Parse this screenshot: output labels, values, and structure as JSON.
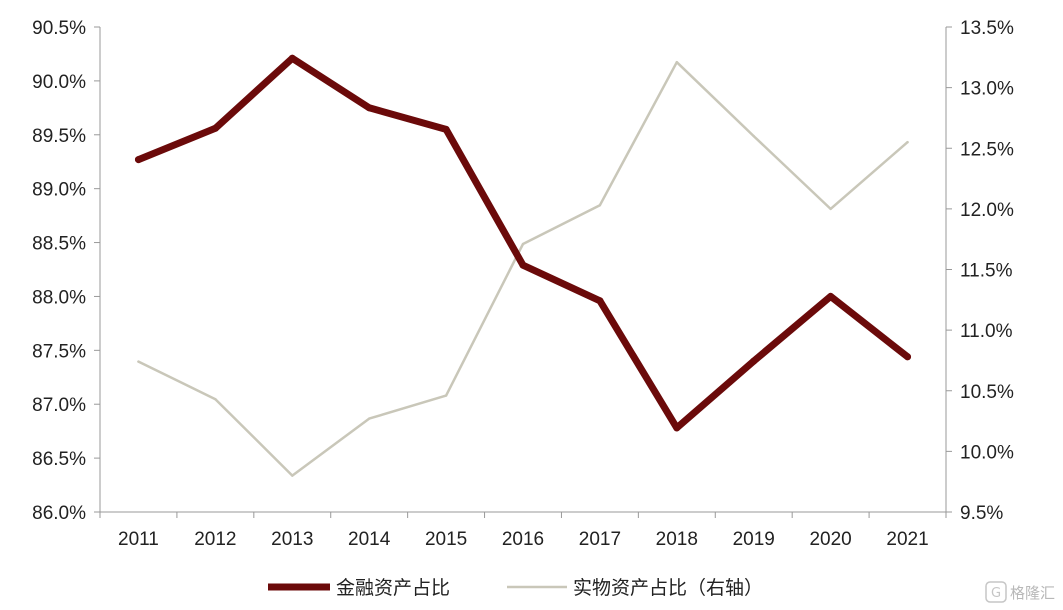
{
  "chart_data": {
    "type": "line",
    "categories": [
      "2011",
      "2012",
      "2013",
      "2014",
      "2015",
      "2016",
      "2017",
      "2018",
      "2019",
      "2020",
      "2021"
    ],
    "series": [
      {
        "name": "金融资产占比",
        "axis": "left",
        "color": "#6b0a0a",
        "values": [
          89.27,
          89.56,
          90.21,
          89.75,
          89.55,
          88.29,
          87.96,
          86.78,
          87.4,
          88.0,
          87.44
        ]
      },
      {
        "name": "实物资产占比（右轴）",
        "axis": "right",
        "color": "#c9c7b9",
        "values": [
          10.74,
          10.43,
          9.8,
          10.27,
          10.46,
          11.71,
          12.03,
          13.21,
          12.6,
          12.0,
          12.55
        ]
      }
    ],
    "y_left": {
      "ylim": [
        86.0,
        90.5
      ],
      "ticks": [
        86.0,
        86.5,
        87.0,
        87.5,
        88.0,
        88.5,
        89.0,
        89.5,
        90.0,
        90.5
      ],
      "tick_labels": [
        "86.0%",
        "86.5%",
        "87.0%",
        "87.5%",
        "88.0%",
        "88.5%",
        "89.0%",
        "89.5%",
        "90.0%",
        "90.5%"
      ]
    },
    "y_right": {
      "ylim": [
        9.5,
        13.5
      ],
      "ticks": [
        9.5,
        10.0,
        10.5,
        11.0,
        11.5,
        12.0,
        12.5,
        13.0,
        13.5
      ],
      "tick_labels": [
        "9.5%",
        "10.0%",
        "10.5%",
        "11.0%",
        "11.5%",
        "12.0%",
        "12.5%",
        "13.0%",
        "13.5%"
      ]
    },
    "grid": false,
    "legend": "bottom-center"
  },
  "watermark": "格隆汇"
}
